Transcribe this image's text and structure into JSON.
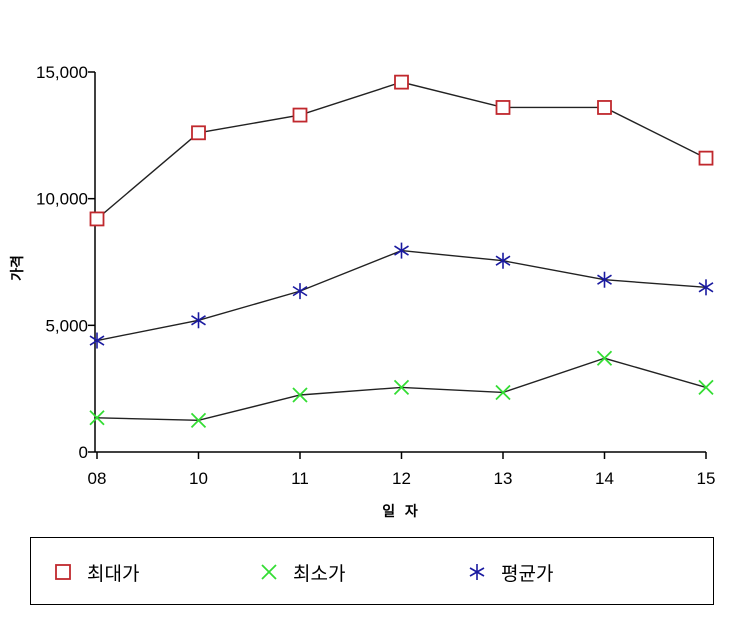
{
  "chart_data": {
    "type": "line",
    "title": "",
    "xlabel": "일  자",
    "ylabel": "가격",
    "categories": [
      "08",
      "10",
      "11",
      "12",
      "13",
      "14",
      "15"
    ],
    "ylim": [
      0,
      15000
    ],
    "yticks": [
      {
        "value": 0,
        "label": "0"
      },
      {
        "value": 5000,
        "label": "5,000"
      },
      {
        "value": 10000,
        "label": "10,000"
      },
      {
        "value": 15000,
        "label": "15,000"
      }
    ],
    "grid": false,
    "legend_position": "bottom",
    "series": [
      {
        "name": "최대가",
        "marker": "square",
        "color": "#c0282d",
        "line_color": "#222222",
        "values": [
          9200,
          12600,
          13300,
          14600,
          13600,
          13600,
          11600
        ]
      },
      {
        "name": "최소가",
        "marker": "x",
        "color": "#33dd33",
        "line_color": "#222222",
        "values": [
          1350,
          1250,
          2250,
          2550,
          2350,
          3700,
          2550
        ]
      },
      {
        "name": "평균가",
        "marker": "asterisk",
        "color": "#1a1aa0",
        "line_color": "#222222",
        "values": [
          4400,
          5200,
          6350,
          7950,
          7550,
          6800,
          6500
        ]
      }
    ]
  }
}
